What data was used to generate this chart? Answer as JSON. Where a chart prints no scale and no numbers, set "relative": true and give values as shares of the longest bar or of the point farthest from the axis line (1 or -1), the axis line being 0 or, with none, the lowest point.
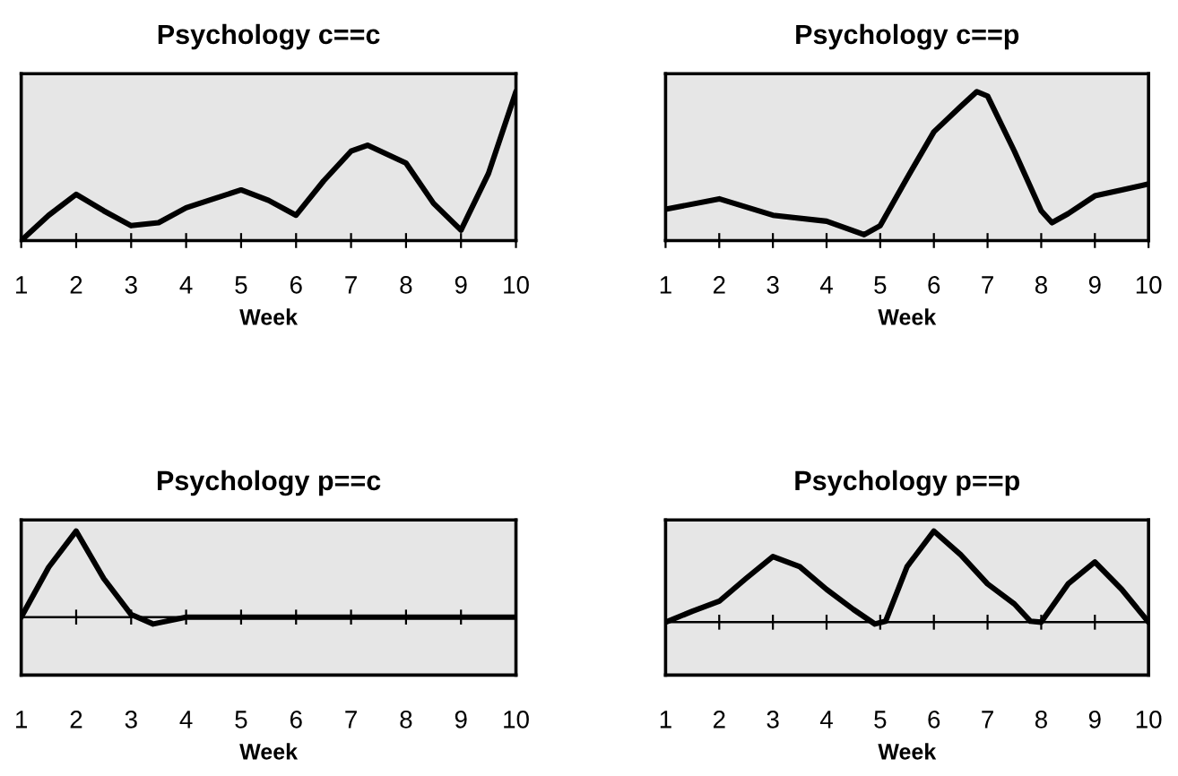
{
  "chart_data": [
    {
      "type": "line",
      "title": "Psychology c==c",
      "xlabel": "Week",
      "relative": true,
      "tick_labels": "x",
      "xlim": [
        1,
        10
      ],
      "xticks": [
        1,
        2,
        3,
        4,
        5,
        6,
        7,
        8,
        9,
        10
      ],
      "color": "#000000",
      "x": [
        1,
        1.5,
        2,
        2.5,
        3,
        3.5,
        4,
        4.5,
        5,
        5.5,
        6,
        6.5,
        7,
        7.3,
        8,
        8.5,
        9,
        9.5,
        10
      ],
      "values": [
        0,
        0.17,
        0.31,
        0.2,
        0.1,
        0.12,
        0.22,
        0.28,
        0.34,
        0.27,
        0.17,
        0.4,
        0.6,
        0.64,
        0.52,
        0.25,
        0.07,
        0.45,
        1
      ]
    },
    {
      "type": "line",
      "title": "Psychology c==p",
      "xlabel": "Week",
      "relative": true,
      "tick_labels": "x",
      "xlim": [
        1,
        10
      ],
      "xticks": [
        1,
        2,
        3,
        4,
        5,
        6,
        7,
        8,
        9,
        10
      ],
      "color": "#000000",
      "x": [
        1,
        2,
        3,
        4,
        4.7,
        5,
        5.5,
        6,
        6.5,
        6.8,
        7,
        7.5,
        8,
        8.2,
        8.5,
        9,
        9.5,
        10
      ],
      "values": [
        0.21,
        0.28,
        0.17,
        0.13,
        0.04,
        0.1,
        0.42,
        0.73,
        0.9,
        1,
        0.97,
        0.6,
        0.2,
        0.12,
        0.18,
        0.3,
        0.34,
        0.38
      ]
    },
    {
      "type": "line",
      "title": "Psychology p==c",
      "xlabel": "Week",
      "relative": true,
      "tick_labels": "x",
      "xlim": [
        1,
        10
      ],
      "xticks": [
        1,
        2,
        3,
        4,
        5,
        6,
        7,
        8,
        9,
        10
      ],
      "color": "#000000",
      "x": [
        1,
        1.5,
        2,
        2.5,
        3,
        3.4,
        4,
        5,
        6,
        7,
        8,
        9,
        10
      ],
      "values": [
        0,
        0.58,
        1,
        0.45,
        0.03,
        -0.08,
        0,
        0,
        0,
        0,
        0,
        0,
        0
      ]
    },
    {
      "type": "line",
      "title": "Psychology p==p",
      "xlabel": "Week",
      "relative": true,
      "tick_labels": "x",
      "xlim": [
        1,
        10
      ],
      "xticks": [
        1,
        2,
        3,
        4,
        5,
        6,
        7,
        8,
        9,
        10
      ],
      "color": "#000000",
      "x": [
        1,
        1.5,
        2,
        2.5,
        3,
        3.5,
        4,
        4.5,
        4.9,
        5.1,
        5.5,
        6,
        6.5,
        7,
        7.5,
        7.8,
        8,
        8.5,
        9,
        9.5,
        10
      ],
      "values": [
        0,
        0.12,
        0.23,
        0.48,
        0.72,
        0.61,
        0.36,
        0.14,
        -0.02,
        0.01,
        0.61,
        1,
        0.74,
        0.42,
        0.2,
        0.01,
        0,
        0.42,
        0.66,
        0.36,
        0
      ]
    }
  ]
}
